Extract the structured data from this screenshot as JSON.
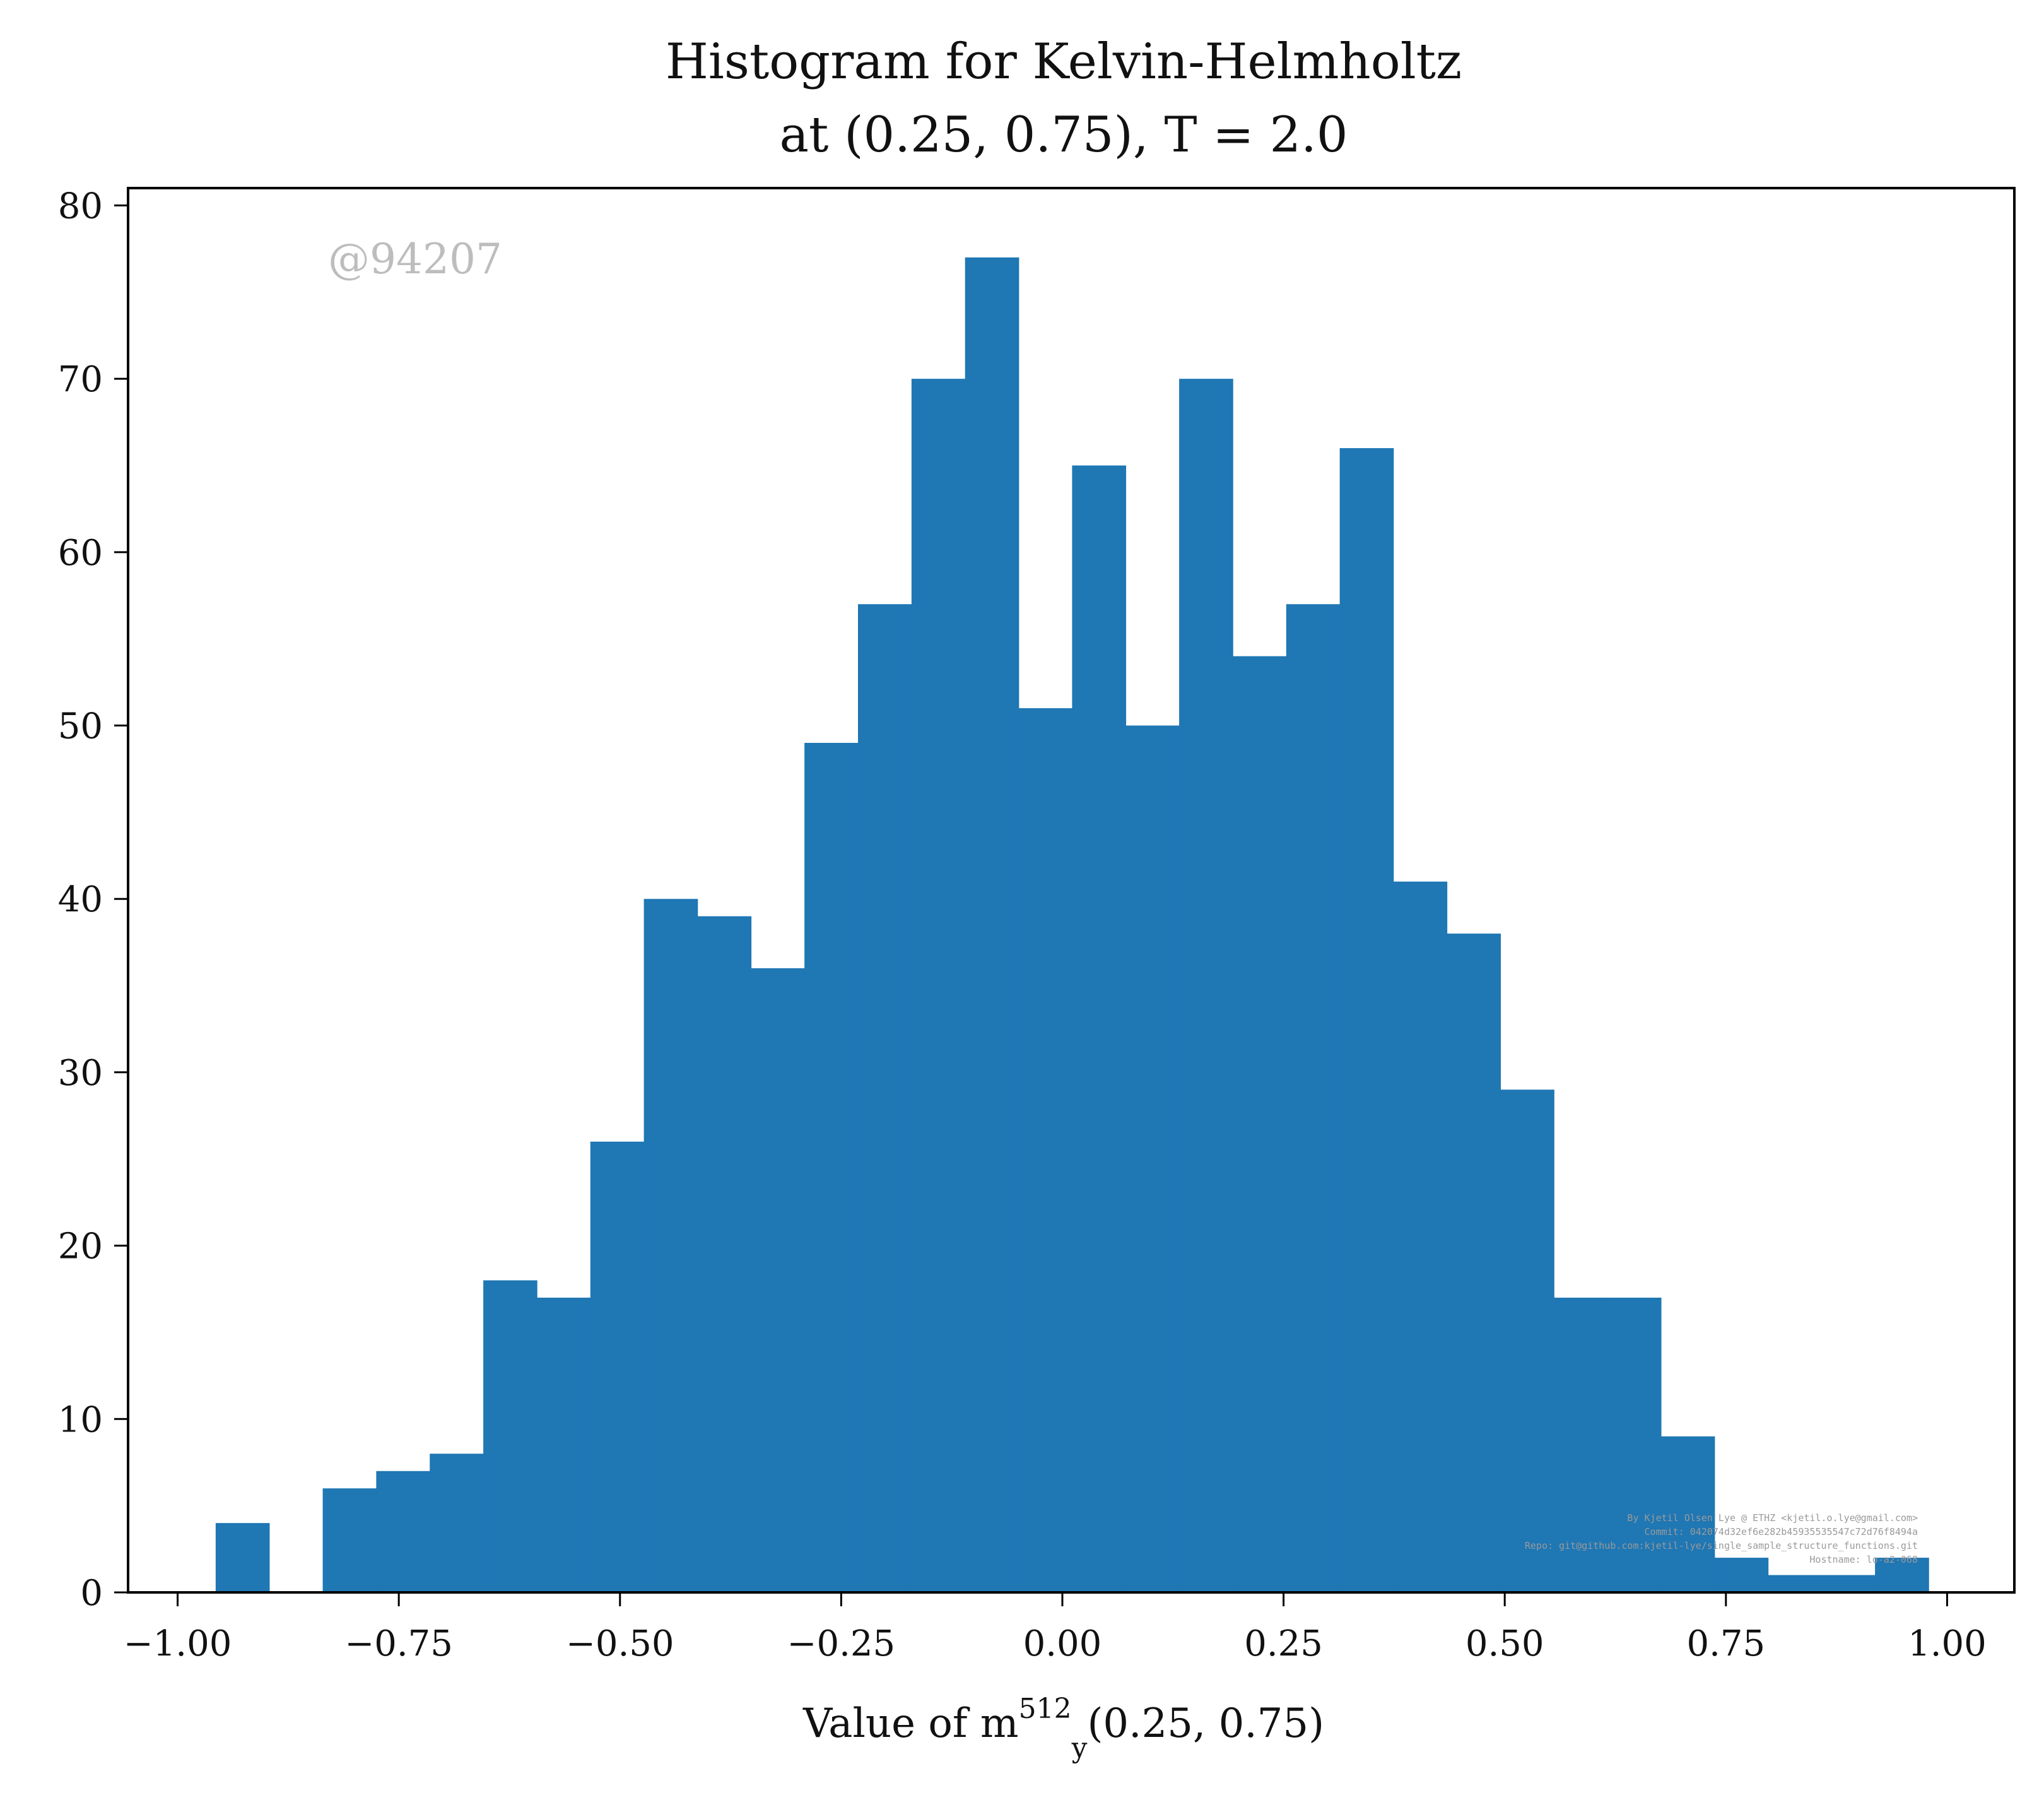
{
  "chart_data": {
    "type": "bar",
    "title_line1": "Histogram for Kelvin-Helmholtz",
    "title_line2": "at (0.25, 0.75), T = 2.0",
    "xlabel": "Value of m_y^512(0.25, 0.75)",
    "xlabel_parts": {
      "prefix": "Value of m",
      "sub": "y",
      "sup": "512",
      "suffix": "(0.25, 0.75)"
    },
    "ylabel": "",
    "xlim": [
      -1.056,
      1.076
    ],
    "ylim": [
      0,
      81
    ],
    "x_ticks": [
      -1.0,
      -0.75,
      -0.5,
      -0.25,
      0.0,
      0.25,
      0.5,
      0.75,
      1.0
    ],
    "x_tick_labels": [
      "−1.00",
      "−0.75",
      "−0.50",
      "−0.25",
      "0.00",
      "0.25",
      "0.50",
      "0.75",
      "1.00"
    ],
    "y_ticks": [
      0,
      10,
      20,
      30,
      40,
      50,
      60,
      70,
      80
    ],
    "y_tick_labels": [
      "0",
      "10",
      "20",
      "30",
      "40",
      "50",
      "60",
      "70",
      "80"
    ],
    "bin_start": -0.957,
    "bin_width": 0.0605,
    "counts": [
      4,
      0,
      6,
      7,
      8,
      18,
      17,
      26,
      40,
      39,
      36,
      49,
      57,
      70,
      77,
      51,
      65,
      50,
      70,
      54,
      57,
      66,
      41,
      38,
      29,
      17,
      17,
      9,
      2,
      1,
      1,
      2
    ],
    "bar_color": "#1f77b4",
    "grid": false,
    "legend": "none",
    "watermark": "@94207",
    "credits": [
      "By Kjetil Olsen Lye @ ETHZ <kjetil.o.lye@gmail.com>",
      "Commit: 042074d32ef6e282b45935535547c72d76f8494a",
      "Repo: git@github.com:kjetil-lye/single_sample_structure_functions.git",
      "Hostname: lo-a2-068"
    ]
  }
}
